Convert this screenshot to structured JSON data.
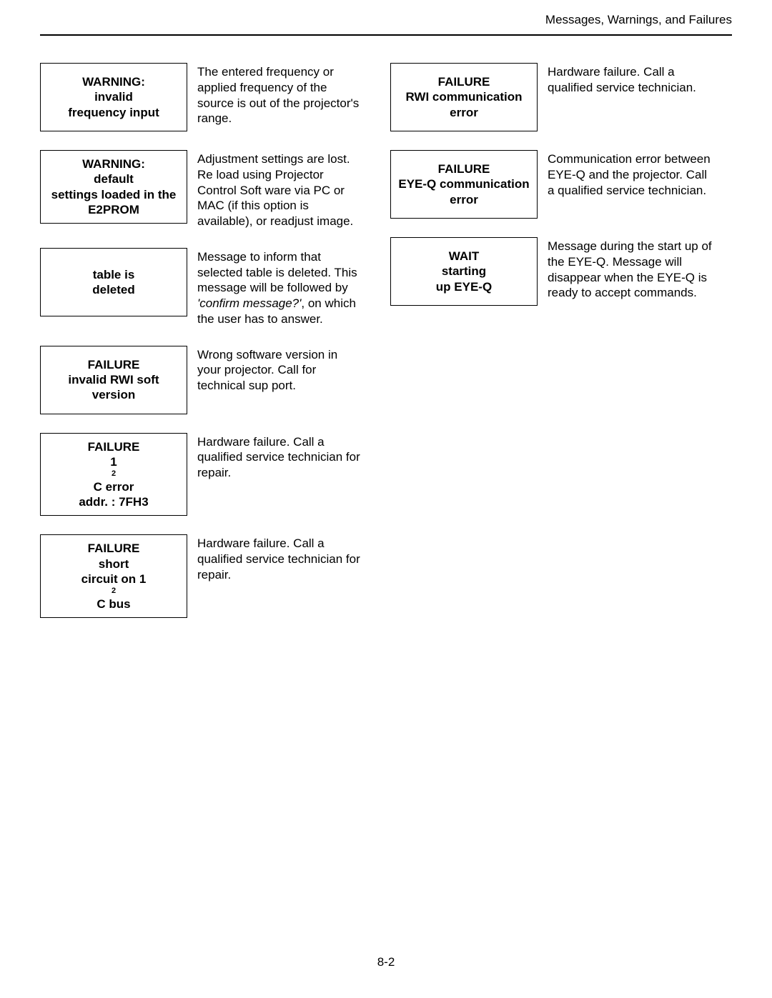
{
  "header": {
    "section_title": "Messages, Warnings, and Failures"
  },
  "page_number": "8-2",
  "left_column": [
    {
      "box_lines": [
        "WARNING:",
        "invalid",
        "frequency input"
      ],
      "desc_html": "The entered frequency or applied frequency of the source is out of the projector's range."
    },
    {
      "box_lines": [
        "WARNING:",
        "default",
        "settings loaded in the",
        "E2PROM"
      ],
      "desc_html": "Adjustment settings are lost. Re load using Projector Control Soft ware via PC or MAC (if this option is available), or readjust image."
    },
    {
      "box_lines": [
        "table is",
        "deleted"
      ],
      "desc_html": "Message to inform that selected table is deleted. This message will be followed by <span class=\"ital\">'confirm message?'</span>, on which the user has to answer."
    },
    {
      "box_lines": [
        "FAILURE",
        "invalid RWI soft",
        "version"
      ],
      "desc_html": "Wrong software version in your projector. Call for technical sup port."
    },
    {
      "box_html": "FAILURE<br>1<span class=\"sup\">2</span>C error<br>addr. : 7FH3",
      "desc_html": "Hardware failure. Call a qualified service technician for repair."
    },
    {
      "box_html": "FAILURE<br>short<br>circuit on 1<span class=\"sup\">2</span>C bus",
      "desc_html": "Hardware failure. Call a qualified service technician for repair."
    }
  ],
  "right_column": [
    {
      "box_lines": [
        "FAILURE",
        "RWI communication",
        "error"
      ],
      "desc_html": "Hardware failure. Call a qualified service technician."
    },
    {
      "box_lines": [
        "FAILURE",
        "EYE-Q communication",
        "error"
      ],
      "desc_html": "Communication error between EYE-Q and the projector. Call a qualified service technician."
    },
    {
      "box_lines": [
        "WAIT",
        "starting",
        "up EYE-Q"
      ],
      "desc_html": "Message during the start up of the EYE-Q. Message will disappear when the EYE-Q is ready to accept commands."
    }
  ]
}
